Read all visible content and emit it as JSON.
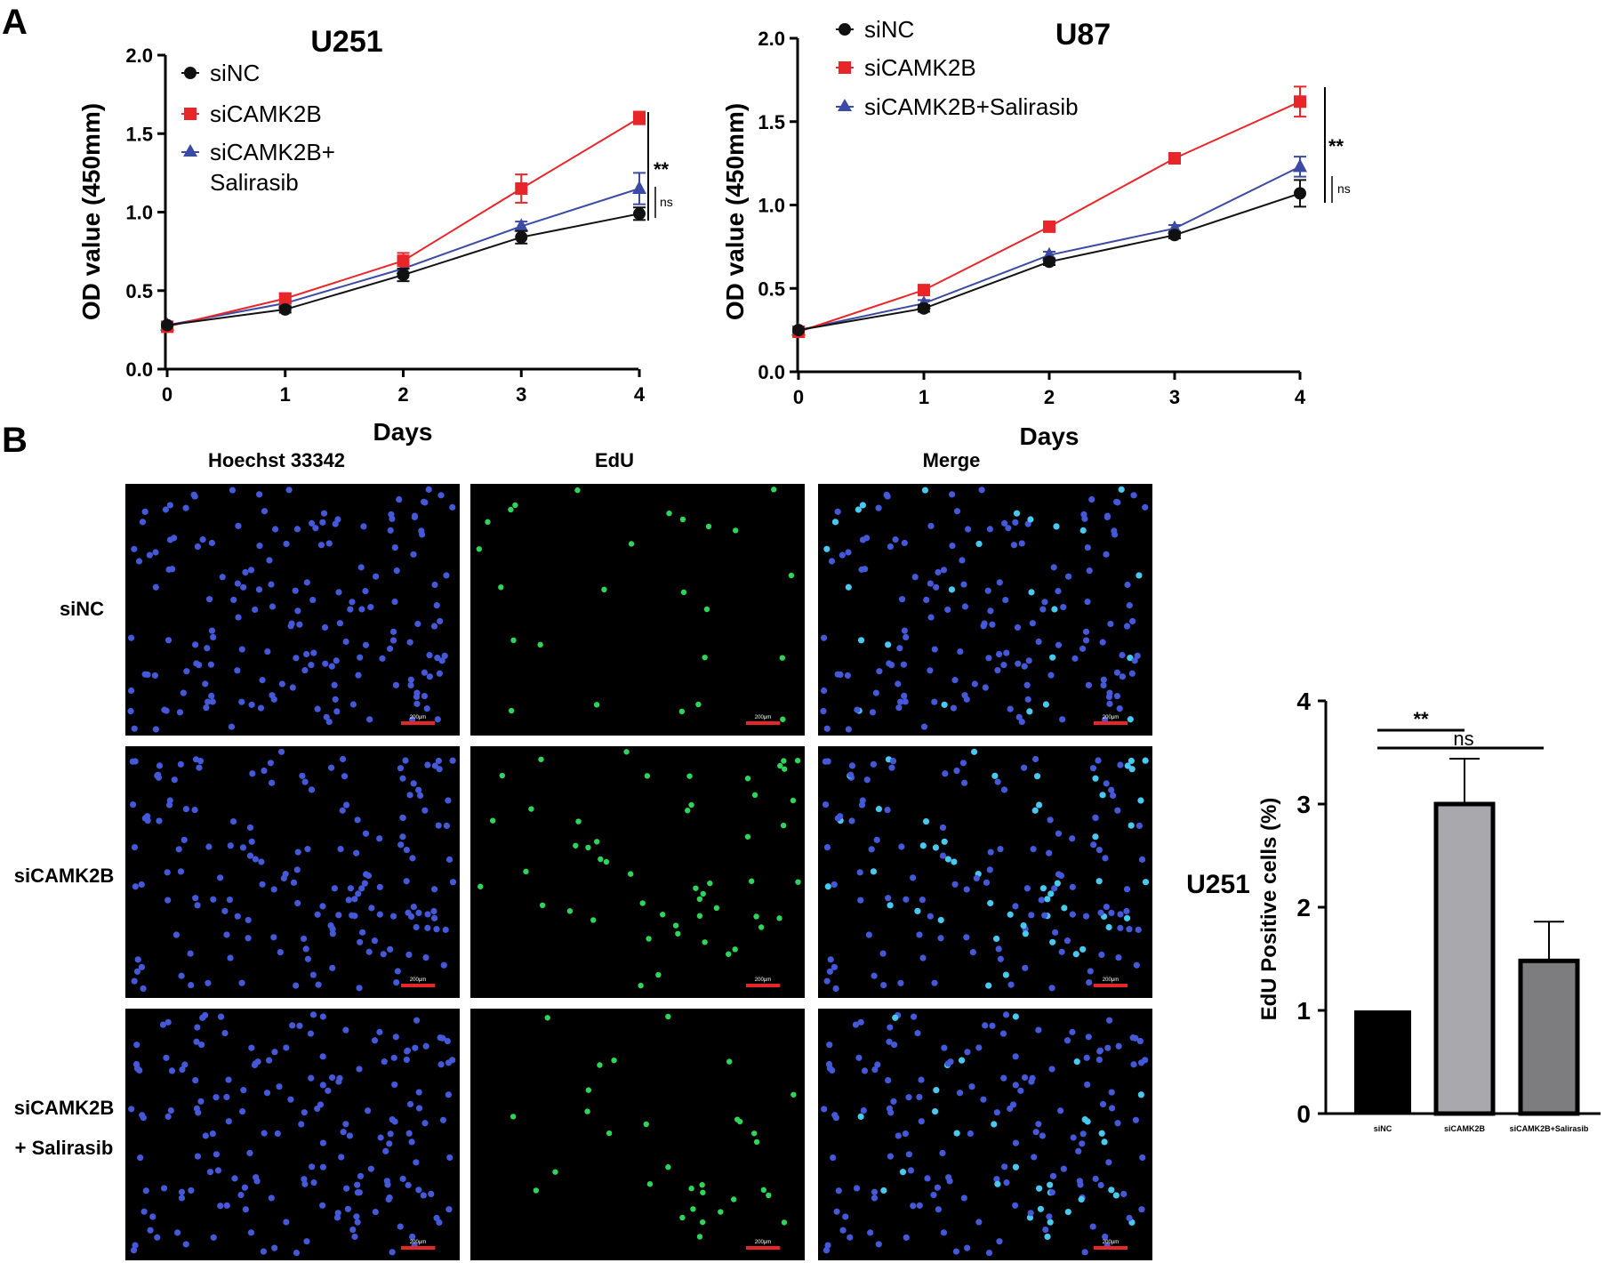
{
  "panels": {
    "A": "A",
    "B": "B"
  },
  "chart_data": [
    {
      "type": "line",
      "title": "U251",
      "xlabel": "Days",
      "ylabel": "OD value (450mm)",
      "x": [
        0,
        1,
        2,
        3,
        4
      ],
      "xticks": [
        "0",
        "1",
        "2",
        "3",
        "4"
      ],
      "yticks": [
        "0.0",
        "0.5",
        "1.0",
        "1.5",
        "2.0"
      ],
      "ylim": [
        0,
        2
      ],
      "legend_position": "top-left",
      "series": [
        {
          "name": "siNC",
          "marker": "circle",
          "color": "#111111",
          "values": [
            0.28,
            0.38,
            0.6,
            0.84,
            0.99
          ],
          "errors": [
            0.01,
            0.02,
            0.04,
            0.04,
            0.04
          ]
        },
        {
          "name": "siCAMK2B",
          "marker": "square",
          "color": "#e8262a",
          "values": [
            0.27,
            0.45,
            0.69,
            1.15,
            1.6
          ],
          "errors": [
            0.01,
            0.03,
            0.05,
            0.09,
            0.04
          ]
        },
        {
          "name": "siCAMK2B+ Salirasib",
          "legend_lines": [
            "siCAMK2B+",
            "Salirasib"
          ],
          "marker": "triangle",
          "color": "#3b4ba3",
          "values": [
            0.28,
            0.42,
            0.64,
            0.91,
            1.15
          ],
          "errors": [
            0.01,
            0.02,
            0.03,
            0.03,
            0.1
          ]
        }
      ],
      "annotations": {
        "sig1": "**",
        "sig2": "ns"
      }
    },
    {
      "type": "line",
      "title": "U87",
      "xlabel": "Days",
      "ylabel": "OD value (450mm)",
      "x": [
        0,
        1,
        2,
        3,
        4
      ],
      "xticks": [
        "0",
        "1",
        "2",
        "3",
        "4"
      ],
      "yticks": [
        "0.0",
        "0.5",
        "1.0",
        "1.5",
        "2.0"
      ],
      "ylim": [
        0,
        2
      ],
      "legend_position": "top-left",
      "series": [
        {
          "name": "siNC",
          "marker": "circle",
          "color": "#111111",
          "values": [
            0.25,
            0.38,
            0.66,
            0.82,
            1.07
          ],
          "errors": [
            0.01,
            0.02,
            0.02,
            0.02,
            0.08
          ]
        },
        {
          "name": "siCAMK2B",
          "marker": "square",
          "color": "#e8262a",
          "values": [
            0.24,
            0.49,
            0.87,
            1.28,
            1.62
          ],
          "errors": [
            0.01,
            0.02,
            0.02,
            0.02,
            0.09
          ]
        },
        {
          "name": "siCAMK2B+Salirasib",
          "marker": "triangle",
          "color": "#3b4ba3",
          "values": [
            0.25,
            0.41,
            0.7,
            0.86,
            1.23
          ],
          "errors": [
            0.01,
            0.02,
            0.02,
            0.02,
            0.06
          ]
        }
      ],
      "annotations": {
        "sig1": "**",
        "sig2": "ns"
      }
    },
    {
      "type": "bar",
      "side_label": "U251",
      "ylabel": "EdU Positive cells (%)",
      "categories": [
        "siNC",
        "siCAMK2B",
        "siCAMK2B+Salirasib"
      ],
      "values": [
        1.0,
        3.0,
        1.48
      ],
      "errors": [
        0,
        0.44,
        0.38
      ],
      "colors": [
        "#000000",
        "#a9a9ad",
        "#7d7d80"
      ],
      "yticks": [
        "0",
        "1",
        "2",
        "3",
        "4"
      ],
      "ylim": [
        0,
        4
      ],
      "annotations": {
        "sig1": "**",
        "sig2": "ns"
      }
    }
  ],
  "micrographs": {
    "columns": [
      "Hoechst 33342",
      "EdU",
      "Merge"
    ],
    "rows": [
      "siNC",
      "siCAMK2B",
      "+ Salirasib"
    ],
    "row3_first_line": "siCAMK2B",
    "scale_bar": "200μm"
  }
}
